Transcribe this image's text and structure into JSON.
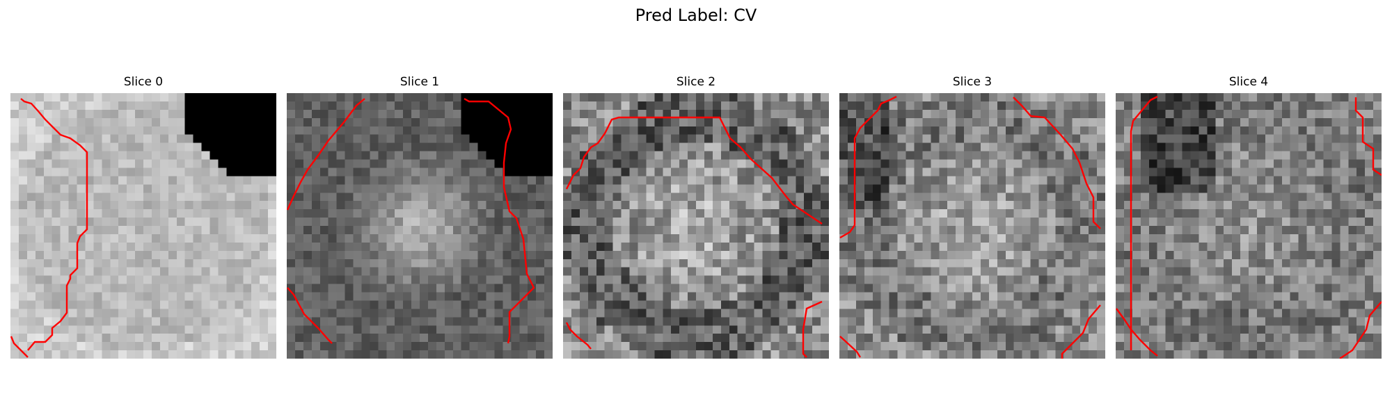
{
  "figure": {
    "title": "Pred Label: CV"
  },
  "colors": {
    "contour": "#ff0000",
    "background": "#ffffff"
  },
  "panels": [
    {
      "title": "Slice 0"
    },
    {
      "title": "Slice 1"
    },
    {
      "title": "Slice 2"
    },
    {
      "title": "Slice 3"
    },
    {
      "title": "Slice 4"
    }
  ]
}
